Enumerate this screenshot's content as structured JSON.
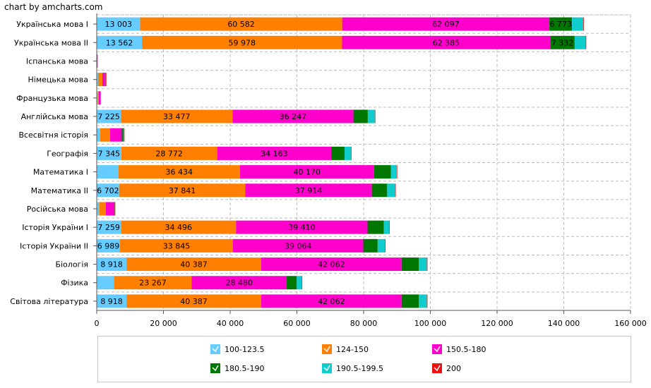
{
  "credit": "chart by amcharts.com",
  "chart_data": {
    "type": "bar",
    "orientation": "horizontal",
    "stacked": true,
    "title": "",
    "xlabel": "",
    "ylabel": "",
    "xlim": [
      0,
      160000
    ],
    "x_ticks": [
      0,
      20000,
      40000,
      60000,
      80000,
      100000,
      120000,
      140000,
      160000
    ],
    "x_tick_labels": [
      "0",
      "20 000",
      "40 000",
      "60 000",
      "80 000",
      "100 000",
      "120 000",
      "140 000",
      "160 000"
    ],
    "grid": true,
    "legend_position": "bottom",
    "categories": [
      "Українська мова I",
      "Українська мова II",
      "Іспанська мова",
      "Німецька мова",
      "Французька мова",
      "Англійська мова",
      "Всесвітня історія",
      "Географія",
      "Математика I",
      "Математика II",
      "Російська мова",
      "Історія України I",
      "Історія України II",
      "Біологія",
      "Фізика",
      "Світова література"
    ],
    "series": [
      {
        "name": "100-123.5",
        "color": "#66ccff",
        "values": [
          13003,
          13562,
          50,
          400,
          300,
          7225,
          1000,
          7345,
          6500,
          6702,
          700,
          7259,
          6989,
          8918,
          5200,
          8918
        ],
        "labels": [
          "13 003",
          "13 562",
          "",
          "",
          "",
          "7 225",
          "",
          "7 345",
          "",
          "6 702",
          "",
          "7 259",
          "6 989",
          "8 918",
          "",
          "8 918"
        ]
      },
      {
        "name": "124-150",
        "color": "#ff8000",
        "values": [
          60582,
          59978,
          50,
          1300,
          300,
          33477,
          3000,
          28772,
          36434,
          37841,
          2000,
          34496,
          33845,
          40387,
          23267,
          40387
        ],
        "labels": [
          "60 582",
          "59 978",
          "",
          "",
          "",
          "33 477",
          "",
          "28 772",
          "36 434",
          "37 841",
          "",
          "34 496",
          "33 845",
          "40 387",
          "23 267",
          "40 387"
        ]
      },
      {
        "name": "150.5-180",
        "color": "#ff00cc",
        "values": [
          62097,
          62385,
          50,
          800,
          600,
          36247,
          3500,
          34163,
          40170,
          37914,
          2500,
          39410,
          39064,
          42062,
          28480,
          42062
        ],
        "labels": [
          "62 097",
          "62 385",
          "",
          "",
          "",
          "36 247",
          "",
          "34 163",
          "40 170",
          "37 914",
          "",
          "39 410",
          "39 064",
          "42 062",
          "28 480",
          "42 062"
        ]
      },
      {
        "name": "180.5-190",
        "color": "#007700",
        "values": [
          6773,
          7332,
          0,
          150,
          0,
          4300,
          500,
          4000,
          5100,
          4600,
          150,
          4900,
          4300,
          5200,
          3000,
          5200
        ],
        "labels": [
          "6 773",
          "7 332",
          "",
          "",
          "",
          "",
          "",
          "",
          "",
          "",
          "",
          "",
          "",
          "",
          "",
          ""
        ]
      },
      {
        "name": "190.5-199.5",
        "color": "#11cccc",
        "values": [
          3400,
          3300,
          0,
          80,
          0,
          2100,
          150,
          1900,
          1700,
          2400,
          50,
          1600,
          2200,
          2400,
          1500,
          2400
        ],
        "labels": [
          "",
          "",
          "",
          "",
          "",
          "",
          "",
          "",
          "",
          "",
          "",
          "",
          "",
          "",
          "",
          ""
        ]
      },
      {
        "name": "200",
        "color": "#ee1111",
        "values": [
          100,
          100,
          0,
          10,
          0,
          50,
          10,
          40,
          60,
          60,
          10,
          60,
          50,
          60,
          40,
          60
        ],
        "labels": [
          "",
          "",
          "",
          "",
          "",
          "",
          "",
          "",
          "",
          "",
          "",
          "",
          "",
          "",
          "",
          ""
        ]
      }
    ]
  }
}
